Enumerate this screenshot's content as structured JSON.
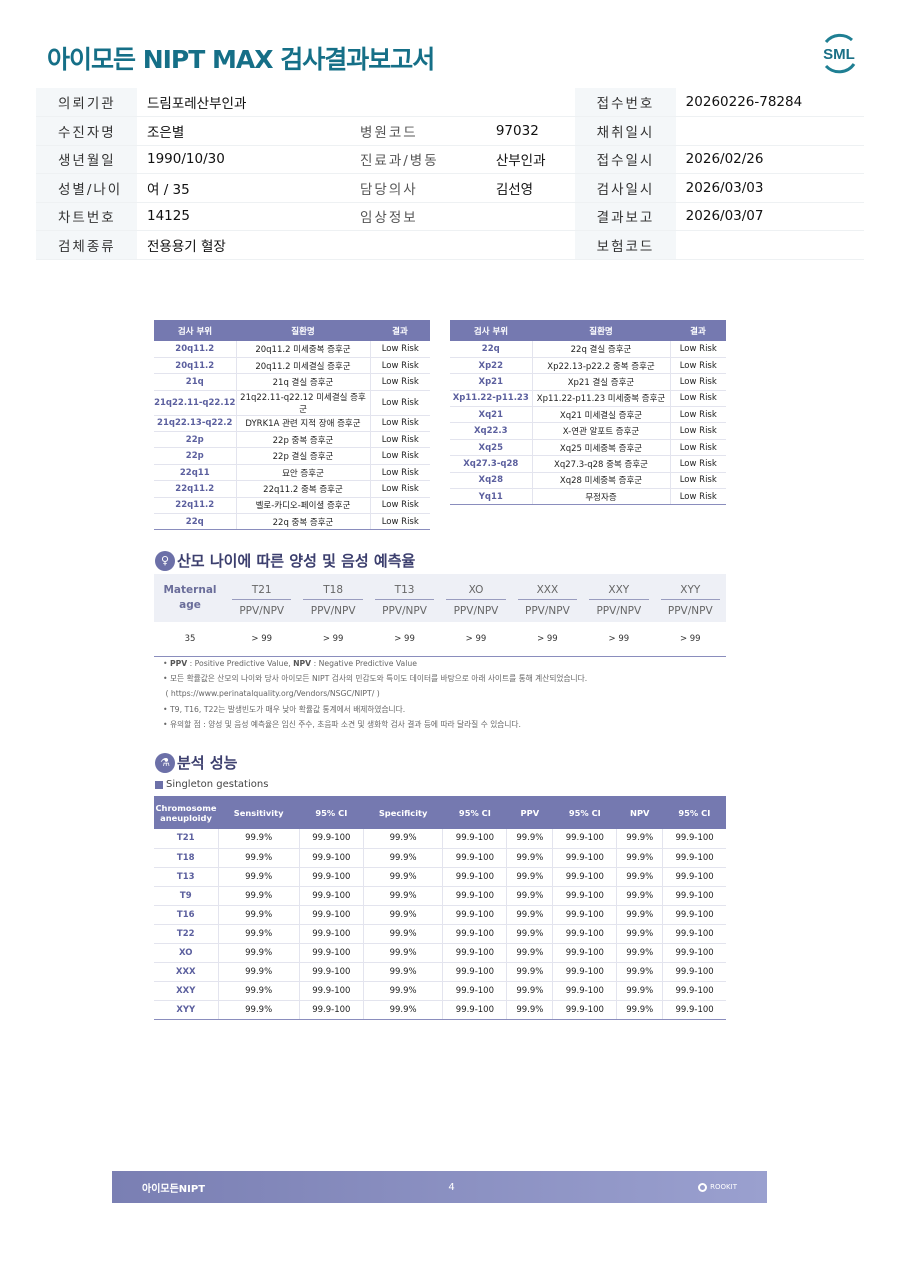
{
  "title": "아이모든 NIPT MAX 검사결과보고서",
  "logo": "SML",
  "info": {
    "rows": [
      [
        {
          "l": "의뢰기관",
          "v": "드림포레산부인과"
        },
        null,
        {
          "l": "접수번호",
          "v": "20260226-78284"
        }
      ],
      [
        {
          "l": "수진자명",
          "v": "조은별"
        },
        {
          "l": "병원코드",
          "v": "97032"
        },
        {
          "l": "채취일시",
          "v": ""
        }
      ],
      [
        {
          "l": "생년월일",
          "v": "1990/10/30"
        },
        {
          "l": "진료과/병동",
          "v": "산부인과"
        },
        {
          "l": "접수일시",
          "v": "2026/02/26"
        }
      ],
      [
        {
          "l": "성별/나이",
          "v": "여 / 35"
        },
        {
          "l": "담당의사",
          "v": "김선영"
        },
        {
          "l": "검사일시",
          "v": "2026/03/03"
        }
      ],
      [
        {
          "l": "차트번호",
          "v": "14125"
        },
        {
          "l": "임상정보",
          "v": ""
        },
        {
          "l": "결과보고",
          "v": "2026/03/07"
        }
      ],
      [
        {
          "l": "검체종류",
          "v": "전용용기 혈장"
        },
        null,
        {
          "l": "보험코드",
          "v": ""
        }
      ]
    ]
  },
  "region_tables": {
    "headers": [
      "검사 부위",
      "질환명",
      "결과"
    ],
    "left": [
      [
        "20q11.2",
        "20q11.2 미세중복 증후군",
        "Low Risk"
      ],
      [
        "20q11.2",
        "20q11.2 미세결실 증후군",
        "Low Risk"
      ],
      [
        "21q",
        "21q 결실 증후군",
        "Low Risk"
      ],
      [
        "21q22.11-q22.12",
        "21q22.11-q22.12 미세결실 증후군",
        "Low Risk"
      ],
      [
        "21q22.13-q22.2",
        "DYRK1A 관련 지적 장애 증후군",
        "Low Risk"
      ],
      [
        "22p",
        "22p 중복 증후군",
        "Low Risk"
      ],
      [
        "22p",
        "22p 결실 증후군",
        "Low Risk"
      ],
      [
        "22q11",
        "묘안 증후군",
        "Low Risk"
      ],
      [
        "22q11.2",
        "22q11.2 중복 증후군",
        "Low Risk"
      ],
      [
        "22q11.2",
        "벨로-카디오-페이셜 증후군",
        "Low Risk"
      ],
      [
        "22q",
        "22q 중복 증후군",
        "Low Risk"
      ]
    ],
    "right": [
      [
        "22q",
        "22q 결실 증후군",
        "Low Risk"
      ],
      [
        "Xp22",
        "Xp22.13-p22.2 중복 증후군",
        "Low Risk"
      ],
      [
        "Xp21",
        "Xp21 결실 증후군",
        "Low Risk"
      ],
      [
        "Xp11.22-p11.23",
        "Xp11.22-p11.23 미세중복 증후군",
        "Low Risk"
      ],
      [
        "Xq21",
        "Xq21 미세결실 증후군",
        "Low Risk"
      ],
      [
        "Xq22.3",
        "X-연관 알포트 증후군",
        "Low Risk"
      ],
      [
        "Xq25",
        "Xq25 미세중복 증후군",
        "Low Risk"
      ],
      [
        "Xq27.3-q28",
        "Xq27.3-q28 중복 증후군",
        "Low Risk"
      ],
      [
        "Xq28",
        "Xq28 미세중복 증후군",
        "Low Risk"
      ],
      [
        "Yq11",
        "무정자증",
        "Low Risk"
      ]
    ]
  },
  "ppv_section": {
    "title": "산모 나이에 따른 양성 및 음성 예측율",
    "icon": "pregnant-woman-icon",
    "age_header": "Maternal age",
    "columns": [
      "T21",
      "T18",
      "T13",
      "XO",
      "XXX",
      "XXY",
      "XYY"
    ],
    "sub_label": "PPV/NPV",
    "age": "35",
    "values": [
      "> 99",
      "> 99",
      "> 99",
      "> 99",
      "> 99",
      "> 99",
      "> 99"
    ],
    "notes": [
      {
        "bold1": "PPV",
        "t1": " : Positive Predictive Value, ",
        "bold2": "NPV",
        "t2": " : Negative Predictive Value"
      },
      {
        "t1": "모든 확률값은 산모의 나이와 당사 아이모든 NIPT 검사의 민감도와 특이도 데이터를 바탕으로 아래 사이트를 통해 계산되었습니다."
      },
      {
        "t1": "( https://www.perinatalquality.org/Vendors/NSGC/NIPT/ )",
        "nobullet": true
      },
      {
        "t1": "T9, T16, T22는 발생빈도가 매우 낮아 확률값 통계에서 배제하였습니다."
      },
      {
        "t1": "유의할 점 : 양성 및 음성 예측율은 임신 주수, 초음파 소견 및 생화학 검사 결과 등에 따라 달라질 수 있습니다."
      }
    ]
  },
  "performance": {
    "title": "분석 성능",
    "icon": "lab-flask-icon",
    "subtitle": "Singleton gestations",
    "headers": [
      "Chromosome aneuploidy",
      "Sensitivity",
      "95% CI",
      "Specificity",
      "95% CI",
      "PPV",
      "95% CI",
      "NPV",
      "95% CI"
    ],
    "rows": [
      [
        "T21",
        "99.9%",
        "99.9-100",
        "99.9%",
        "99.9-100",
        "99.9%",
        "99.9-100",
        "99.9%",
        "99.9-100"
      ],
      [
        "T18",
        "99.9%",
        "99.9-100",
        "99.9%",
        "99.9-100",
        "99.9%",
        "99.9-100",
        "99.9%",
        "99.9-100"
      ],
      [
        "T13",
        "99.9%",
        "99.9-100",
        "99.9%",
        "99.9-100",
        "99.9%",
        "99.9-100",
        "99.9%",
        "99.9-100"
      ],
      [
        "T9",
        "99.9%",
        "99.9-100",
        "99.9%",
        "99.9-100",
        "99.9%",
        "99.9-100",
        "99.9%",
        "99.9-100"
      ],
      [
        "T16",
        "99.9%",
        "99.9-100",
        "99.9%",
        "99.9-100",
        "99.9%",
        "99.9-100",
        "99.9%",
        "99.9-100"
      ],
      [
        "T22",
        "99.9%",
        "99.9-100",
        "99.9%",
        "99.9-100",
        "99.9%",
        "99.9-100",
        "99.9%",
        "99.9-100"
      ],
      [
        "XO",
        "99.9%",
        "99.9-100",
        "99.9%",
        "99.9-100",
        "99.9%",
        "99.9-100",
        "99.9%",
        "99.9-100"
      ],
      [
        "XXX",
        "99.9%",
        "99.9-100",
        "99.9%",
        "99.9-100",
        "99.9%",
        "99.9-100",
        "99.9%",
        "99.9-100"
      ],
      [
        "XXY",
        "99.9%",
        "99.9-100",
        "99.9%",
        "99.9-100",
        "99.9%",
        "99.9-100",
        "99.9%",
        "99.9-100"
      ],
      [
        "XYY",
        "99.9%",
        "99.9-100",
        "99.9%",
        "99.9-100",
        "99.9%",
        "99.9-100",
        "99.9%",
        "99.9-100"
      ]
    ]
  },
  "footer": {
    "left": "아이모든NIPT",
    "page": "4",
    "brand": "ROOKIT"
  },
  "colors": {
    "title": "#156f87",
    "header": "#7579b0",
    "accent_text": "#5b5f9e"
  }
}
